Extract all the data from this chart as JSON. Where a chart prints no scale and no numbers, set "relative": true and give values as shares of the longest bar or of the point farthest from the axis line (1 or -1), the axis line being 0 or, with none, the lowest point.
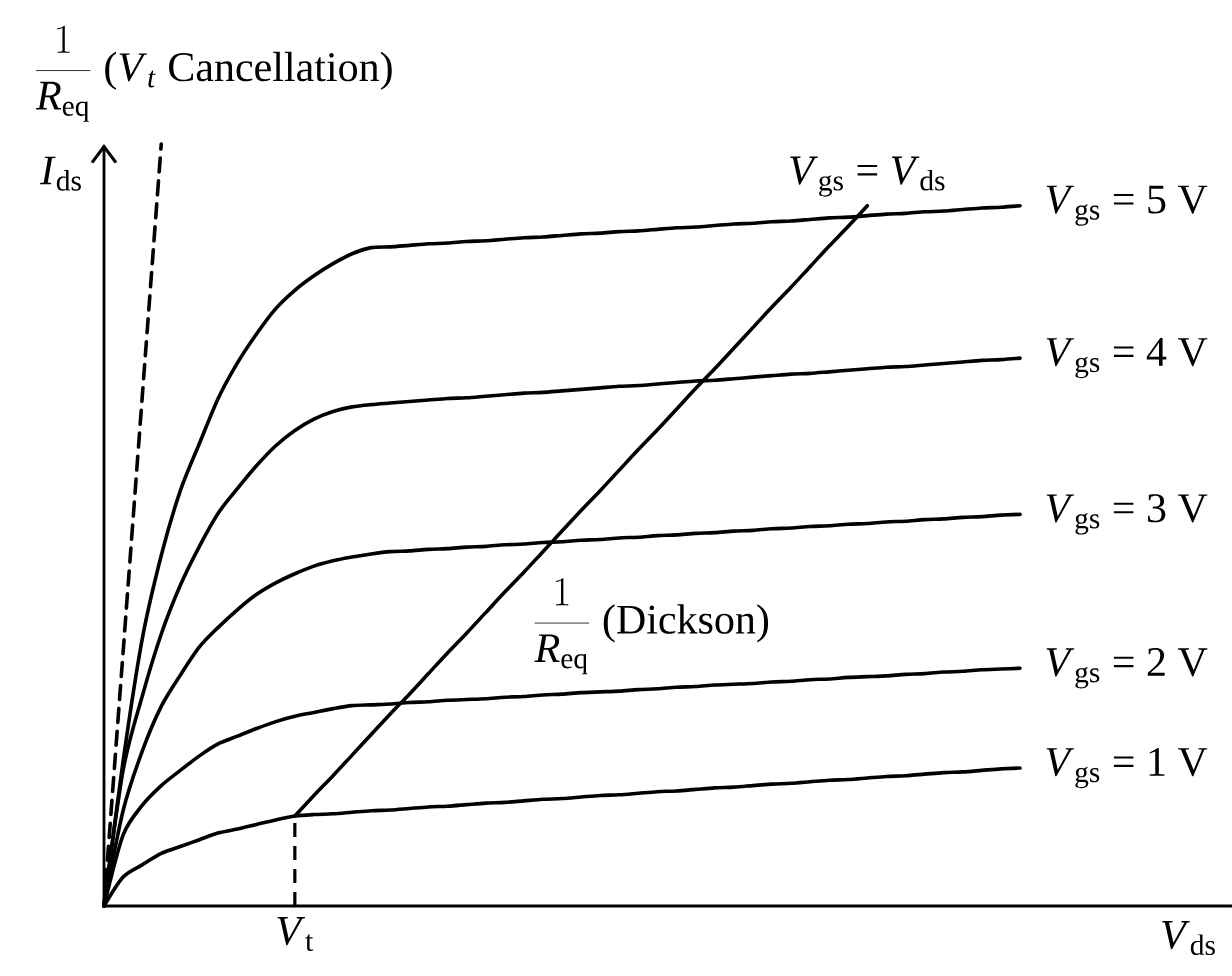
{
  "chart_data": {
    "type": "line",
    "relative": true,
    "xlabel": "*V*$_{ds}$",
    "ylabel": "*I*$_{ds}$",
    "categories": [
      null,
      null,
      null,
      null,
      null,
      null,
      null,
      null,
      null,
      null,
      null,
      null,
      null,
      null,
      null,
      null,
      null,
      null,
      null,
      null,
      null,
      null,
      null,
      null,
      null,
      null,
      null,
      null,
      null,
      null,
      null,
      null,
      null,
      null,
      null,
      null,
      null,
      null,
      null,
      null,
      null,
      null,
      null,
      null,
      null,
      null,
      null,
      null,
      null
    ],
    "annotations": [
      "*V*$_{gs}$ = *V*$_{ds}$",
      "*V*$_{t}$"
    ],
    "series": [
      {
        "name": "\\frac{1}{\\mathit{R}_{\\mathrm{eq}}}\\ \\mbox{(\\textit{V}\\textsubscript{\\textit{t}} Cancellation)}",
        "color": "#000000",
        "line_style": "dashed",
        "values": [
          0,
          0.333,
          0.667,
          1,
          null,
          null,
          null,
          null,
          null,
          null,
          null,
          null,
          null,
          null,
          null,
          null,
          null,
          null,
          null,
          null,
          null,
          null,
          null,
          null,
          null,
          null,
          null,
          null,
          null,
          null,
          null,
          null,
          null,
          null,
          null,
          null,
          null,
          null,
          null,
          null,
          null,
          null,
          null,
          null,
          null,
          null,
          null,
          null,
          null
        ]
      },
      {
        "name": "*V*$_{gs}$ = 5 V",
        "color": "#000000",
        "values": [
          0,
          0.19,
          0.35,
          0.46,
          0.545,
          0.607,
          0.667,
          0.713,
          0.751,
          0.784,
          0.808,
          0.827,
          0.843,
          0.856,
          0.864,
          0.865,
          0.867,
          0.869,
          0.87,
          0.872,
          0.873,
          0.875,
          0.877,
          0.878,
          0.88,
          0.882,
          0.883,
          0.885,
          0.886,
          0.888,
          0.89,
          0.891,
          0.893,
          0.895,
          0.896,
          0.898,
          0.899,
          0.901,
          0.903,
          0.904,
          0.906,
          0.908,
          0.909,
          0.911,
          0.912,
          0.914,
          0.916,
          0.917,
          0.919
        ]
      },
      {
        "name": "*V*$_{gs}$ = 4 V",
        "color": "#000000",
        "values": [
          0,
          0.178,
          0.275,
          0.357,
          0.421,
          0.472,
          0.516,
          0.548,
          0.578,
          0.604,
          0.624,
          0.639,
          0.649,
          0.655,
          0.658,
          0.66,
          0.662,
          0.664,
          0.666,
          0.667,
          0.669,
          0.671,
          0.673,
          0.674,
          0.676,
          0.678,
          0.68,
          0.682,
          0.683,
          0.685,
          0.687,
          0.689,
          0.69,
          0.692,
          0.694,
          0.696,
          0.698,
          0.699,
          0.701,
          0.703,
          0.705,
          0.707,
          0.708,
          0.71,
          0.712,
          0.714,
          0.716,
          0.717,
          0.719
        ]
      },
      {
        "name": "*V*$_{gs}$ = 3 V",
        "color": "#000000",
        "values": [
          0,
          0.125,
          0.203,
          0.262,
          0.303,
          0.34,
          0.366,
          0.389,
          0.409,
          0.424,
          0.436,
          0.446,
          0.453,
          0.458,
          0.462,
          0.465,
          0.466,
          0.468,
          0.469,
          0.471,
          0.472,
          0.474,
          0.475,
          0.477,
          0.478,
          0.48,
          0.481,
          0.483,
          0.484,
          0.486,
          0.487,
          0.489,
          0.49,
          0.492,
          0.493,
          0.495,
          0.496,
          0.498,
          0.499,
          0.501,
          0.502,
          0.504,
          0.505,
          0.507,
          0.508,
          0.51,
          0.511,
          0.513,
          0.514
        ]
      },
      {
        "name": "*V*$_{gs}$ = 2 V",
        "color": "#000000",
        "values": [
          0,
          0.093,
          0.132,
          0.158,
          0.178,
          0.197,
          0.213,
          0.223,
          0.233,
          0.242,
          0.249,
          0.254,
          0.259,
          0.263,
          0.264,
          0.265,
          0.267,
          0.268,
          0.27,
          0.271,
          0.272,
          0.274,
          0.275,
          0.277,
          0.278,
          0.28,
          0.281,
          0.282,
          0.284,
          0.285,
          0.287,
          0.288,
          0.29,
          0.291,
          0.292,
          0.294,
          0.295,
          0.297,
          0.298,
          0.3,
          0.301,
          0.302,
          0.304,
          0.305,
          0.307,
          0.308,
          0.31,
          0.311,
          0.312
        ]
      },
      {
        "name": "*V*$_{gs}$ = 1 V",
        "color": "#000000",
        "values": [
          0,
          0.038,
          0.054,
          0.069,
          0.078,
          0.087,
          0.096,
          0.101,
          0.107,
          0.113,
          0.118,
          0.12,
          0.121,
          0.123,
          0.125,
          0.126,
          0.128,
          0.13,
          0.131,
          0.133,
          0.135,
          0.136,
          0.138,
          0.14,
          0.141,
          0.143,
          0.145,
          0.146,
          0.148,
          0.15,
          0.151,
          0.153,
          0.155,
          0.156,
          0.158,
          0.16,
          0.161,
          0.163,
          0.165,
          0.166,
          0.168,
          0.17,
          0.171,
          0.173,
          0.175,
          0.176,
          0.178,
          0.18,
          0.181
        ]
      },
      {
        "name": "\\frac{1}{\\mathit{R}_{\\mathrm{eq}}}\\ \\mbox{(Dickson)}",
        "color": "#000000",
        "values": [
          null,
          null,
          null,
          null,
          null,
          null,
          null,
          null,
          null,
          null,
          0.118,
          0.145,
          0.171,
          0.198,
          0.225,
          0.252,
          0.278,
          0.305,
          0.332,
          0.358,
          0.385,
          0.412,
          0.438,
          0.465,
          0.492,
          0.519,
          0.545,
          0.572,
          0.599,
          0.625,
          0.652,
          0.679,
          0.705,
          0.732,
          0.759,
          0.786,
          0.812,
          0.839,
          0.866,
          0.892,
          0.919,
          null,
          null,
          null,
          null,
          null,
          null,
          null,
          null
        ]
      }
    ]
  }
}
